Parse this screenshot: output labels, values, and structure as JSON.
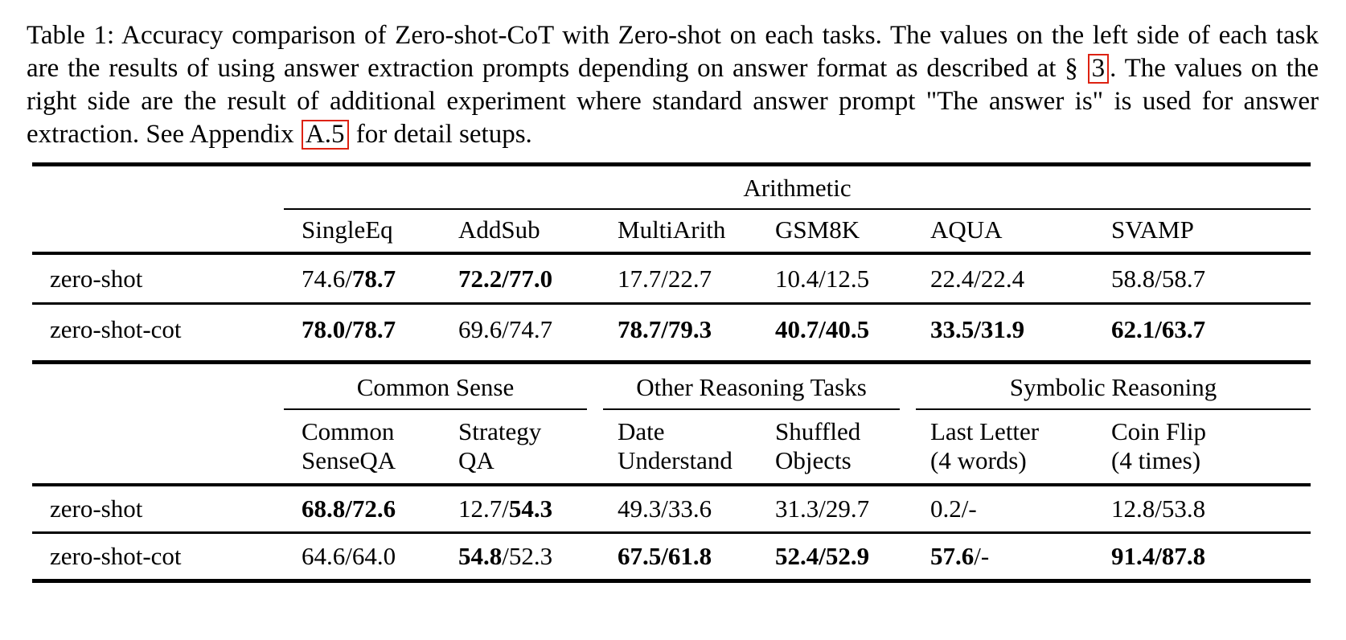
{
  "caption": {
    "segments": [
      {
        "text": "Table 1: Accuracy comparison of Zero-shot-CoT with Zero-shot on each tasks. The values on the left side of each task are the results of using answer extraction prompts depending on answer format as described at § "
      },
      {
        "text": "3",
        "ref": true
      },
      {
        "text": ". The values on the right side are the result of additional experiment where standard answer prompt \"The answer is\" is used for answer extraction. See Appendix "
      },
      {
        "text": "A.5",
        "ref": true
      },
      {
        "text": " for detail setups."
      }
    ],
    "ref_box_color": "#dd2211",
    "text_color": "#000000"
  },
  "table": {
    "text_color": "#000000",
    "rule_color": "#000000",
    "sections": [
      {
        "groups": [
          {
            "label": "Arithmetic",
            "span": 6
          }
        ],
        "columns": [
          [
            "SingleEq"
          ],
          [
            "AddSub"
          ],
          [
            "MultiArith"
          ],
          [
            "GSM8K"
          ],
          [
            "AQUA"
          ],
          [
            "SVAMP"
          ]
        ],
        "rows": [
          {
            "label": "zero-shot",
            "cells": [
              "74.6/**78.7**",
              "**72.2/77.0**",
              "17.7/22.7",
              "10.4/12.5",
              "22.4/22.4",
              "58.8/58.7"
            ]
          },
          {
            "label": "zero-shot-cot",
            "cells": [
              "**78.0/78.7**",
              "69.6/74.7",
              "**78.7/79.3**",
              "**40.7/40.5**",
              "**33.5/31.9**",
              "**62.1/63.7**"
            ]
          }
        ]
      },
      {
        "groups": [
          {
            "label": "Common Sense",
            "span": 2
          },
          {
            "label": "Other Reasoning Tasks",
            "span": 2
          },
          {
            "label": "Symbolic Reasoning",
            "span": 2
          }
        ],
        "columns": [
          [
            "Common",
            "SenseQA"
          ],
          [
            "Strategy",
            "QA"
          ],
          [
            "Date",
            "Understand"
          ],
          [
            "Shuffled",
            "Objects"
          ],
          [
            "Last Letter",
            "(4 words)"
          ],
          [
            "Coin Flip",
            "(4 times)"
          ]
        ],
        "rows": [
          {
            "label": "zero-shot",
            "cells": [
              "**68.8/72.6**",
              "12.7/**54.3**",
              "49.3/33.6",
              "31.3/29.7",
              "0.2/-",
              "12.8/53.8"
            ]
          },
          {
            "label": "zero-shot-cot",
            "cells": [
              "64.6/64.0",
              "**54.8**/52.3",
              "**67.5/61.8**",
              "**52.4/52.9**",
              "**57.6**/-",
              "**91.4/87.8**"
            ]
          }
        ]
      }
    ]
  }
}
